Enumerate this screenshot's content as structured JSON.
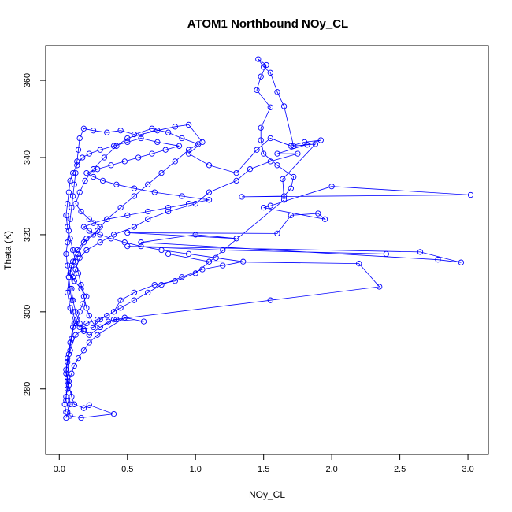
{
  "chart_data": {
    "type": "scatter",
    "title": "ATOM1 Northbound NOy_CL",
    "xlabel": "NOy_CL",
    "ylabel": "Theta (K)",
    "xlim": [
      -0.1,
      3.15
    ],
    "ylim": [
      263,
      369
    ],
    "x_ticks": [
      0.0,
      0.5,
      1.0,
      1.5,
      2.0,
      2.5,
      3.0
    ],
    "x_tick_labels": [
      "0.0",
      "0.5",
      "1.0",
      "1.5",
      "2.0",
      "2.5",
      "3.0"
    ],
    "y_ticks": [
      280,
      300,
      320,
      340,
      360
    ],
    "y_tick_labels": [
      "280",
      "300",
      "320",
      "340",
      "360"
    ],
    "series_color": "#0000ff",
    "marker": "open-circle",
    "connected": true,
    "grid": false,
    "points": [
      [
        0.05,
        272.5
      ],
      [
        0.06,
        274
      ],
      [
        0.08,
        276
      ],
      [
        0.07,
        279
      ],
      [
        0.06,
        282
      ],
      [
        0.05,
        285
      ],
      [
        0.06,
        288
      ],
      [
        0.08,
        292
      ],
      [
        0.1,
        296
      ],
      [
        0.13,
        298
      ],
      [
        0.15,
        300
      ],
      [
        0.17,
        302
      ],
      [
        0.2,
        304
      ],
      [
        0.16,
        306
      ],
      [
        0.11,
        308
      ],
      [
        0.08,
        310
      ],
      [
        0.1,
        313
      ],
      [
        0.14,
        315
      ],
      [
        0.18,
        318
      ],
      [
        0.25,
        320
      ],
      [
        0.3,
        322
      ],
      [
        0.22,
        324
      ],
      [
        0.16,
        326
      ],
      [
        0.12,
        328
      ],
      [
        0.15,
        331
      ],
      [
        0.19,
        334
      ],
      [
        0.25,
        337
      ],
      [
        0.33,
        340
      ],
      [
        0.42,
        343
      ],
      [
        0.5,
        345
      ],
      [
        0.6,
        346
      ],
      [
        0.72,
        347
      ],
      [
        0.85,
        348
      ],
      [
        0.95,
        348.5
      ],
      [
        1.05,
        344
      ],
      [
        0.95,
        341
      ],
      [
        1.1,
        338
      ],
      [
        1.3,
        336
      ],
      [
        1.45,
        342
      ],
      [
        1.55,
        345
      ],
      [
        1.7,
        343
      ],
      [
        1.8,
        344
      ],
      [
        1.92,
        344.5
      ],
      [
        1.6,
        341
      ],
      [
        1.75,
        341
      ],
      [
        1.55,
        339
      ],
      [
        1.4,
        337
      ],
      [
        1.3,
        334
      ],
      [
        1.1,
        331
      ],
      [
        1.0,
        328
      ],
      [
        0.8,
        326
      ],
      [
        0.65,
        324
      ],
      [
        0.55,
        322
      ],
      [
        0.4,
        320
      ],
      [
        0.3,
        318
      ],
      [
        0.2,
        316
      ],
      [
        0.15,
        314
      ],
      [
        0.12,
        311
      ],
      [
        0.1,
        309
      ],
      [
        0.09,
        306
      ],
      [
        0.1,
        303
      ],
      [
        0.12,
        300
      ],
      [
        0.15,
        297
      ],
      [
        0.18,
        295
      ],
      [
        0.22,
        294
      ],
      [
        0.3,
        296
      ],
      [
        0.4,
        298
      ],
      [
        1.55,
        303
      ],
      [
        2.35,
        306.5
      ],
      [
        2.2,
        312.5
      ],
      [
        1.1,
        313
      ],
      [
        0.8,
        315
      ],
      [
        2.4,
        315
      ],
      [
        1.2,
        316
      ],
      [
        0.5,
        317
      ],
      [
        2.65,
        315.5
      ],
      [
        2.95,
        312.8
      ],
      [
        2.78,
        313.5
      ],
      [
        0.6,
        318
      ],
      [
        1.0,
        320
      ],
      [
        1.3,
        319
      ],
      [
        0.5,
        320.5
      ],
      [
        1.6,
        320.3
      ],
      [
        1.7,
        325
      ],
      [
        1.9,
        325.5
      ],
      [
        1.95,
        324
      ],
      [
        1.5,
        327
      ],
      [
        1.55,
        327.5
      ],
      [
        2.0,
        332.5
      ],
      [
        3.02,
        330.3
      ],
      [
        1.34,
        329.8
      ],
      [
        1.65,
        330
      ],
      [
        1.7,
        332
      ],
      [
        1.72,
        335
      ],
      [
        1.6,
        338
      ],
      [
        1.5,
        341
      ],
      [
        1.48,
        344.5
      ],
      [
        1.48,
        347.7
      ],
      [
        1.55,
        353
      ],
      [
        1.45,
        357.5
      ],
      [
        1.48,
        361
      ],
      [
        1.52,
        364
      ],
      [
        1.46,
        365.5
      ],
      [
        1.5,
        363.5
      ],
      [
        1.55,
        362
      ],
      [
        1.6,
        357
      ],
      [
        1.65,
        353.3
      ],
      [
        1.72,
        343
      ],
      [
        1.82,
        343.3
      ],
      [
        1.88,
        343.5
      ],
      [
        1.64,
        334.4
      ],
      [
        1.65,
        329
      ],
      [
        1.0,
        310
      ],
      [
        0.85,
        308
      ],
      [
        0.7,
        307
      ],
      [
        0.55,
        305
      ],
      [
        0.45,
        303
      ],
      [
        0.4,
        300
      ],
      [
        0.3,
        298
      ],
      [
        0.25,
        296
      ],
      [
        0.18,
        295.5
      ],
      [
        0.12,
        294
      ],
      [
        0.08,
        290
      ],
      [
        0.06,
        287
      ],
      [
        0.05,
        284
      ],
      [
        0.07,
        281
      ],
      [
        0.09,
        278
      ],
      [
        0.11,
        276
      ],
      [
        0.18,
        275
      ],
      [
        0.22,
        275.8
      ],
      [
        0.4,
        273.5
      ],
      [
        0.16,
        272.5
      ],
      [
        0.08,
        273
      ],
      [
        0.05,
        277
      ],
      [
        0.06,
        283
      ],
      [
        0.07,
        289
      ],
      [
        0.09,
        293
      ],
      [
        0.11,
        297
      ],
      [
        0.08,
        301
      ],
      [
        0.06,
        305
      ],
      [
        0.07,
        309
      ],
      [
        0.09,
        312
      ],
      [
        0.13,
        316
      ],
      [
        0.2,
        319
      ],
      [
        0.28,
        321
      ],
      [
        0.35,
        324
      ],
      [
        0.45,
        327
      ],
      [
        0.55,
        330
      ],
      [
        0.65,
        333
      ],
      [
        0.75,
        336
      ],
      [
        0.85,
        339
      ],
      [
        0.95,
        342
      ],
      [
        1.02,
        343.5
      ],
      [
        0.9,
        345
      ],
      [
        0.8,
        346.5
      ],
      [
        0.68,
        347.5
      ],
      [
        0.55,
        346
      ],
      [
        0.45,
        347
      ],
      [
        0.35,
        346.5
      ],
      [
        0.25,
        347
      ],
      [
        0.18,
        347.5
      ],
      [
        0.15,
        345
      ],
      [
        0.14,
        342
      ],
      [
        0.13,
        339
      ],
      [
        0.12,
        336
      ],
      [
        0.11,
        333
      ],
      [
        0.1,
        330
      ],
      [
        0.09,
        327
      ],
      [
        0.08,
        324
      ],
      [
        0.07,
        321
      ],
      [
        0.06,
        318
      ],
      [
        0.05,
        315
      ],
      [
        0.06,
        312
      ],
      [
        0.07,
        309
      ],
      [
        0.08,
        306
      ],
      [
        0.09,
        303
      ],
      [
        0.1,
        300
      ],
      [
        0.12,
        297
      ],
      [
        0.15,
        296
      ],
      [
        0.2,
        297
      ],
      [
        0.28,
        298
      ],
      [
        0.35,
        299
      ],
      [
        0.45,
        301
      ],
      [
        0.55,
        303
      ],
      [
        0.65,
        305
      ],
      [
        0.75,
        307
      ],
      [
        0.9,
        309
      ],
      [
        1.05,
        311
      ],
      [
        1.2,
        312
      ],
      [
        1.35,
        313
      ],
      [
        1.15,
        314
      ],
      [
        0.95,
        315
      ],
      [
        0.75,
        316
      ],
      [
        0.6,
        317
      ],
      [
        0.48,
        318
      ],
      [
        0.38,
        319
      ],
      [
        0.3,
        320
      ],
      [
        0.22,
        321
      ],
      [
        0.18,
        322
      ],
      [
        0.25,
        323
      ],
      [
        0.35,
        324
      ],
      [
        0.5,
        325
      ],
      [
        0.65,
        326
      ],
      [
        0.8,
        327
      ],
      [
        0.95,
        328
      ],
      [
        1.1,
        329
      ],
      [
        0.9,
        330
      ],
      [
        0.7,
        331
      ],
      [
        0.55,
        332
      ],
      [
        0.42,
        333
      ],
      [
        0.32,
        334
      ],
      [
        0.25,
        335
      ],
      [
        0.2,
        336
      ],
      [
        0.28,
        337
      ],
      [
        0.38,
        338
      ],
      [
        0.48,
        339
      ],
      [
        0.58,
        340
      ],
      [
        0.68,
        341
      ],
      [
        0.78,
        342
      ],
      [
        0.88,
        343
      ],
      [
        0.72,
        344
      ],
      [
        0.6,
        345
      ],
      [
        0.5,
        344
      ],
      [
        0.4,
        343
      ],
      [
        0.3,
        342
      ],
      [
        0.22,
        341
      ],
      [
        0.17,
        340
      ],
      [
        0.13,
        338
      ],
      [
        0.1,
        336
      ],
      [
        0.08,
        334
      ],
      [
        0.07,
        331
      ],
      [
        0.06,
        328
      ],
      [
        0.05,
        325
      ],
      [
        0.06,
        322
      ],
      [
        0.08,
        319
      ],
      [
        0.1,
        316
      ],
      [
        0.12,
        313
      ],
      [
        0.14,
        310
      ],
      [
        0.16,
        307
      ],
      [
        0.18,
        304
      ],
      [
        0.2,
        301
      ],
      [
        0.22,
        299
      ],
      [
        0.25,
        297
      ],
      [
        0.3,
        296
      ],
      [
        0.36,
        297.5
      ],
      [
        0.42,
        298
      ],
      [
        0.62,
        297.5
      ],
      [
        0.48,
        298.5
      ],
      [
        0.28,
        294
      ],
      [
        0.22,
        292
      ],
      [
        0.18,
        290
      ],
      [
        0.14,
        288
      ],
      [
        0.11,
        286
      ],
      [
        0.09,
        284
      ],
      [
        0.07,
        282
      ],
      [
        0.06,
        280
      ],
      [
        0.05,
        278
      ],
      [
        0.04,
        276
      ],
      [
        0.05,
        274
      ]
    ]
  }
}
